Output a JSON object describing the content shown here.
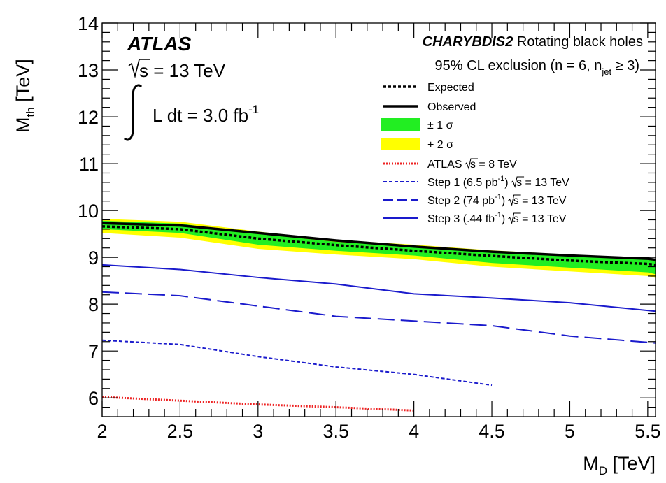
{
  "chart_data": {
    "type": "line",
    "xlabel_main": "M",
    "xlabel_sub": "D",
    "xlabel_unit": " [TeV]",
    "ylabel_main": "M",
    "ylabel_sub": "th",
    "ylabel_unit": " [TeV]",
    "xlim": [
      2,
      5.55
    ],
    "ylim": [
      5.6,
      14
    ],
    "xticks": [
      2,
      2.5,
      3,
      3.5,
      4,
      4.5,
      5,
      5.5
    ],
    "xtick_labels": [
      "2",
      "2.5",
      "3",
      "3.5",
      "4",
      "4.5",
      "5",
      "5.5"
    ],
    "yticks": [
      6,
      7,
      8,
      9,
      10,
      11,
      12,
      13,
      14
    ],
    "ytick_labels": [
      "6",
      "7",
      "8",
      "9",
      "10",
      "11",
      "12",
      "13",
      "14"
    ],
    "experiment": "ATLAS",
    "energy": "s = 13 TeV",
    "lumi_main": "L dt = 3.0 fb",
    "lumi_sup": "-1",
    "title_bold": "CHARYBDIS2",
    "title_rest": " Rotating black holes",
    "subtitle_main": "95% CL exclusion (n = 6, n",
    "subtitle_sub": "jet",
    "subtitle_end": " ≥ 3)",
    "x": [
      2,
      2.5,
      3,
      3.5,
      4,
      4.5,
      5,
      5.5,
      5.55
    ],
    "band_2sigma_low": [
      9.52,
      9.42,
      9.18,
      9.06,
      8.96,
      8.8,
      8.7,
      8.6,
      8.56
    ],
    "band_2sigma_high": [
      9.82,
      9.76,
      9.55,
      9.37,
      9.27,
      9.15,
      9.06,
      8.98,
      8.95
    ],
    "band_1sigma_low": [
      9.6,
      9.52,
      9.27,
      9.14,
      9.04,
      8.88,
      8.78,
      8.68,
      8.64
    ],
    "band_1sigma_high": [
      9.78,
      9.72,
      9.5,
      9.33,
      9.23,
      9.11,
      9.02,
      8.95,
      8.92
    ],
    "series": [
      {
        "name": "Expected",
        "style": "dotted-black",
        "x": [
          2,
          2.5,
          3,
          3.5,
          4,
          4.5,
          5,
          5.5,
          5.55
        ],
        "values": [
          9.66,
          9.6,
          9.4,
          9.26,
          9.14,
          9.03,
          8.93,
          8.86,
          8.84
        ]
      },
      {
        "name": "Observed",
        "style": "solid-black",
        "x": [
          2,
          2.5,
          3,
          3.5,
          4,
          4.5,
          5,
          5.5,
          5.55
        ],
        "values": [
          9.73,
          9.68,
          9.52,
          9.36,
          9.23,
          9.12,
          9.04,
          8.97,
          8.95
        ]
      },
      {
        "name": "ATLAS s = 8 TeV",
        "style": "dotted-red",
        "x": [
          2,
          2.5,
          3,
          3.5,
          4
        ],
        "values": [
          6.02,
          5.94,
          5.86,
          5.8,
          5.73
        ]
      },
      {
        "name": "Step 1 (6.5 pb",
        "style": "short-dash-blue",
        "x": [
          2,
          2.5,
          3,
          3.5,
          4,
          4.5
        ],
        "values": [
          7.23,
          7.14,
          6.88,
          6.66,
          6.5,
          6.27
        ]
      },
      {
        "name": "Step 2 (74 pb",
        "style": "long-dash-blue",
        "x": [
          2,
          2.5,
          3,
          3.5,
          4,
          4.5,
          5,
          5.55
        ],
        "values": [
          8.26,
          8.18,
          7.96,
          7.74,
          7.64,
          7.54,
          7.32,
          7.17
        ]
      },
      {
        "name": "Step 3 (.44 fb",
        "style": "solid-blue",
        "x": [
          2,
          2.5,
          3,
          3.5,
          4,
          4.5,
          5,
          5.55
        ],
        "values": [
          8.84,
          8.74,
          8.57,
          8.43,
          8.22,
          8.13,
          8.03,
          7.85
        ]
      }
    ],
    "legend": [
      {
        "label": "Expected",
        "kind": "line",
        "style": "dotted-black"
      },
      {
        "label": "Observed",
        "kind": "line",
        "style": "solid-black"
      },
      {
        "label": "± 1 σ",
        "kind": "box",
        "color": "#22ee22"
      },
      {
        "label": "+ 2 σ",
        "kind": "box",
        "color": "#ffff00"
      },
      {
        "label": "ATLAS ",
        "sqrt": "s",
        "after": " = 8 TeV",
        "kind": "line",
        "style": "dotted-red"
      },
      {
        "label": "Step 1 (6.5 pb",
        "sup": "-1",
        "mid": ") ",
        "sqrt": "s",
        "after": " = 13 TeV",
        "kind": "line",
        "style": "short-dash-blue"
      },
      {
        "label": "Step 2 (74 pb",
        "sup": "-1",
        "mid": ") ",
        "sqrt": "s",
        "after": " = 13 TeV",
        "kind": "line",
        "style": "long-dash-blue"
      },
      {
        "label": "Step 3 (.44 fb",
        "sup": "-1",
        "mid": ") ",
        "sqrt": "s",
        "after": " = 13 TeV",
        "kind": "line",
        "style": "solid-blue"
      }
    ],
    "colors": {
      "band_1sigma": "#22ee22",
      "band_2sigma": "#ffff00",
      "black": "#000000",
      "red": "#ee2222",
      "blue": "#1a1acc"
    }
  }
}
